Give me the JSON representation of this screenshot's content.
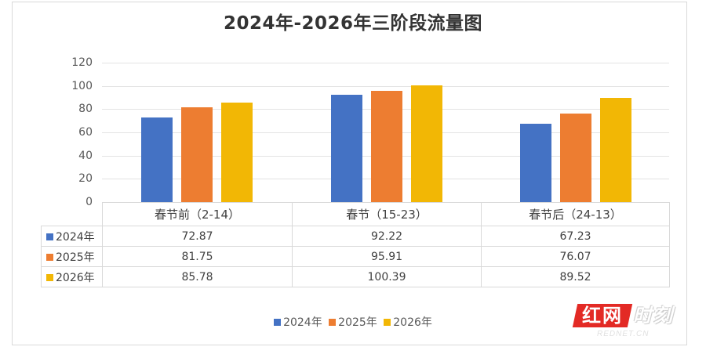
{
  "chart_data": {
    "type": "bar",
    "title": "2024年-2026年三阶段流量图",
    "categories": [
      "春节前（2-14）",
      "春节（15-23）",
      "春节后（24-13）"
    ],
    "series": [
      {
        "name": "2024年",
        "color": "#4472c4",
        "values": [
          72.87,
          92.22,
          67.23
        ]
      },
      {
        "name": "2025年",
        "color": "#ed7d31",
        "values": [
          81.75,
          95.91,
          76.07
        ]
      },
      {
        "name": "2026年",
        "color": "#f2b705",
        "values": [
          85.78,
          100.39,
          89.52
        ]
      }
    ],
    "xlabel": "",
    "ylabel": "",
    "ylim": [
      0,
      120
    ],
    "yticks": [
      "0",
      "20",
      "40",
      "60",
      "80",
      "100",
      "120"
    ],
    "grid": true,
    "legend_position": "bottom",
    "data_table": true
  },
  "table": {
    "rows": [
      {
        "label": "2024年",
        "values": [
          "72.87",
          "92.22",
          "67.23"
        ]
      },
      {
        "label": "2025年",
        "values": [
          "81.75",
          "95.91",
          "76.07"
        ]
      },
      {
        "label": "2026年",
        "values": [
          "85.78",
          "100.39",
          "89.52"
        ]
      }
    ]
  },
  "legend": [
    "2024年",
    "2025年",
    "2026年"
  ],
  "watermark": {
    "brand_red": "红网",
    "brand_outline": "时刻",
    "domain": "REDNET.CN"
  }
}
